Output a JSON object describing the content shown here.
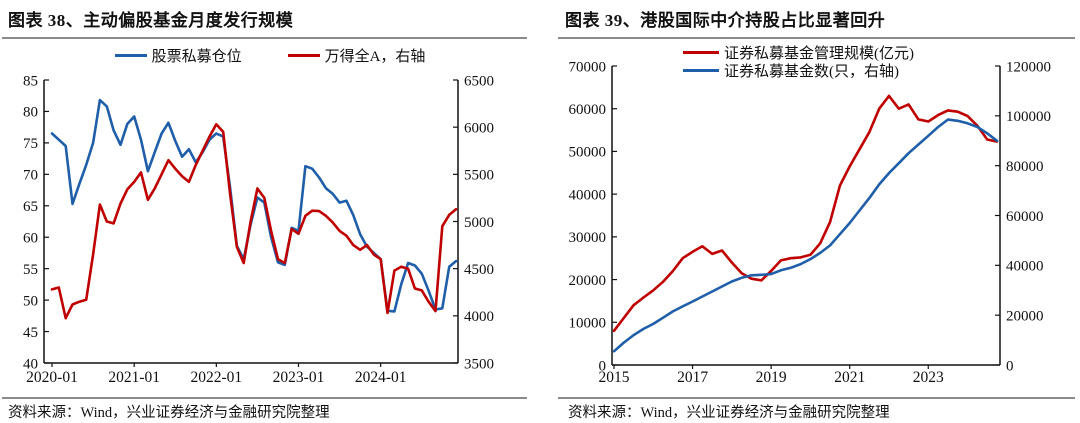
{
  "page": {
    "background": "#ffffff",
    "divider_color": "#8a8a8a"
  },
  "chart_data": [
    {
      "type": "line",
      "title": "图表 38、主动偏股基金月度发行规模",
      "source": "资料来源：Wind，兴业证券经济与金融研究院整理",
      "x_unit": "month",
      "x_start": "2020-01",
      "x_tick_labels": [
        "2020-01",
        "2021-01",
        "2022-01",
        "2023-01",
        "2024-01"
      ],
      "x_tick_indices": [
        0,
        12,
        24,
        36,
        48
      ],
      "left_axis": {
        "min": 40,
        "max": 85,
        "ticks": [
          85,
          80,
          75,
          70,
          65,
          60,
          55,
          50,
          45,
          40
        ]
      },
      "right_axis": {
        "min": 3500,
        "max": 6500,
        "ticks": [
          6500,
          6000,
          5500,
          5000,
          4500,
          4000,
          3500
        ]
      },
      "grid": false,
      "legend_position": "top-center",
      "series": [
        {
          "name": "股票私募仓位",
          "axis": "left",
          "color": "#1F5EA8",
          "values": [
            76.5,
            75.5,
            74.5,
            65.3,
            68.5,
            71.5,
            75.0,
            81.8,
            80.8,
            77.0,
            74.7,
            78.0,
            79.2,
            75.5,
            70.5,
            73.5,
            76.5,
            78.2,
            75.3,
            72.8,
            74.0,
            71.9,
            73.5,
            75.5,
            76.5,
            76.0,
            68.0,
            58.6,
            56.5,
            62.0,
            66.3,
            65.5,
            60.0,
            56.0,
            55.6,
            61.5,
            61.0,
            71.3,
            70.9,
            69.5,
            67.8,
            66.9,
            65.5,
            65.8,
            63.5,
            60.5,
            58.5,
            57.5,
            56.5,
            48.3,
            48.2,
            52.5,
            55.9,
            55.5,
            54.2,
            51.5,
            48.5,
            48.7,
            55.3,
            56.2
          ]
        },
        {
          "name": "万得全A，右轴",
          "axis": "right",
          "color": "#C00000",
          "values": [
            4280,
            4300,
            3975,
            4120,
            4150,
            4170,
            4650,
            5180,
            5000,
            4980,
            5190,
            5340,
            5420,
            5520,
            5230,
            5350,
            5500,
            5650,
            5560,
            5480,
            5420,
            5600,
            5750,
            5900,
            6030,
            5950,
            5300,
            4730,
            4560,
            5000,
            5350,
            5250,
            4900,
            4600,
            4560,
            4920,
            4870,
            5060,
            5115,
            5110,
            5060,
            4990,
            4900,
            4850,
            4750,
            4700,
            4750,
            4650,
            4600,
            4030,
            4480,
            4520,
            4500,
            4290,
            4270,
            4150,
            4050,
            4950,
            5070,
            5130
          ]
        }
      ]
    },
    {
      "type": "line",
      "title": "图表 39、港股国际中介持股占比显著回升",
      "source": "资料来源：Wind，兴业证券经济与金融研究院整理",
      "x_unit": "quarter",
      "x_start": "2015Q1",
      "x_tick_labels": [
        "2015",
        "2017",
        "2019",
        "2021",
        "2023"
      ],
      "x_tick_indices": [
        0,
        8,
        16,
        24,
        32
      ],
      "left_axis": {
        "min": 0,
        "max": 70000,
        "ticks": [
          70000,
          60000,
          50000,
          40000,
          30000,
          20000,
          10000,
          0
        ]
      },
      "right_axis": {
        "min": 0,
        "max": 120000,
        "ticks": [
          120000,
          100000,
          80000,
          60000,
          40000,
          20000,
          0
        ]
      },
      "grid": false,
      "legend_position": "top-center-stacked",
      "series": [
        {
          "name": "证券私募基金管理规模(亿元)",
          "axis": "left",
          "color": "#C00000",
          "values": [
            8000,
            11000,
            14000,
            15800,
            17500,
            19500,
            22000,
            25000,
            26500,
            27800,
            26000,
            26800,
            24000,
            21500,
            20200,
            19800,
            22000,
            24500,
            25000,
            25200,
            25800,
            28500,
            33500,
            42000,
            46500,
            50500,
            54500,
            60000,
            63000,
            60000,
            61000,
            57500,
            57000,
            58500,
            59600,
            59300,
            58300,
            56000,
            52800,
            52300
          ]
        },
        {
          "name": "证券私募基金数(只，右轴)",
          "axis": "right",
          "color": "#1F5EA8",
          "values": [
            5500,
            9000,
            12000,
            14500,
            16500,
            19000,
            21500,
            23500,
            25500,
            27500,
            29500,
            31500,
            33500,
            35000,
            36000,
            36200,
            36500,
            38000,
            39000,
            40500,
            42500,
            45000,
            48000,
            52500,
            57000,
            62000,
            67000,
            72500,
            77000,
            81000,
            85000,
            88500,
            92000,
            95500,
            98500,
            98000,
            97000,
            95500,
            93000,
            90000
          ]
        }
      ]
    }
  ]
}
